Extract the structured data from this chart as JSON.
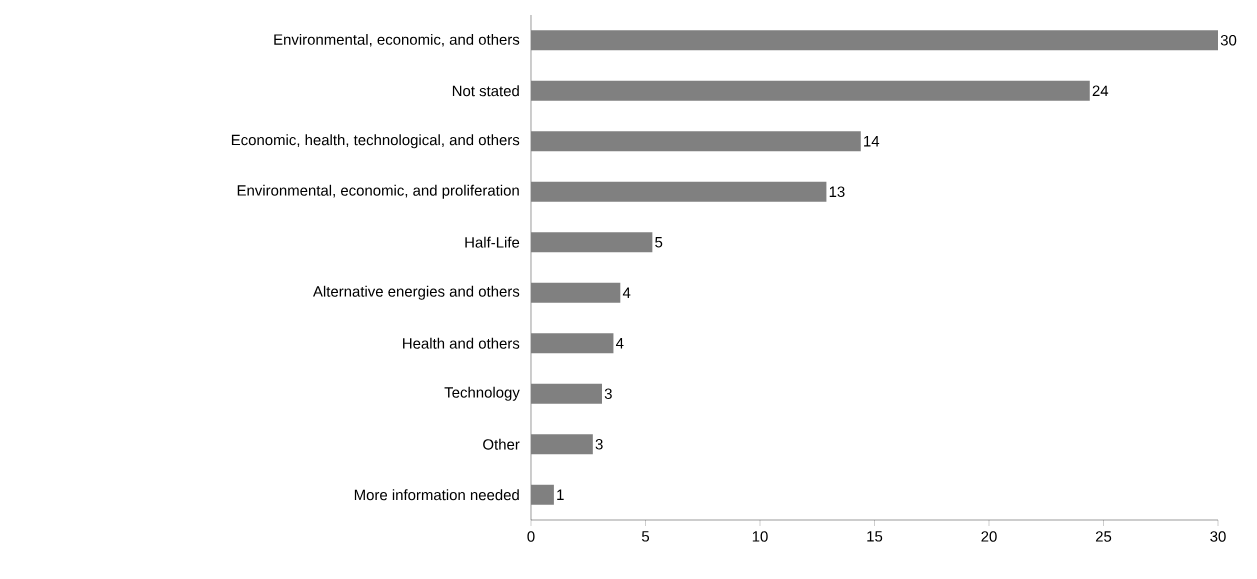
{
  "chart_data": {
    "type": "bar",
    "orientation": "horizontal",
    "categories": [
      "Environmental, economic, and others",
      "Not stated",
      "Economic, health, technological, and others",
      "Environmental, economic, and proliferation",
      "Half-Life",
      "Alternative energies and others",
      "Health and others",
      "Technology",
      "Other",
      "More information needed"
    ],
    "values": [
      30.0,
      24.4,
      14.4,
      12.9,
      5.3,
      3.9,
      3.6,
      3.1,
      2.7,
      1.0
    ],
    "value_labels": [
      "30",
      "24",
      "14",
      "13",
      "5",
      "4",
      "4",
      "3",
      "3",
      "1"
    ],
    "color": "#808080",
    "xlim": [
      0,
      30
    ],
    "xticks": [
      0,
      5,
      10,
      15,
      20,
      25,
      30
    ],
    "grid": false
  }
}
